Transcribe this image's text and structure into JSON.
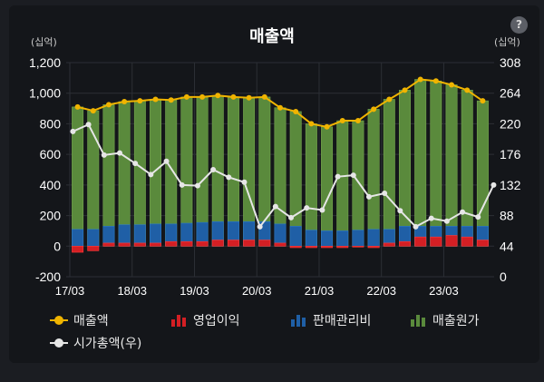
{
  "title": "매출액",
  "help_label": "?",
  "left_unit": "(십억)",
  "right_unit": "(십억)",
  "colors": {
    "revenue": "#f0b400",
    "operating_profit": "#d41f24",
    "sga": "#1f5fa6",
    "cogs": "#5a8a3c",
    "market_cap": "#e6e6e6",
    "grid": "#2c2f35",
    "axis_text": "#ffffff"
  },
  "legend": [
    {
      "label": "매출액",
      "icon": "line-marker-icon",
      "key": "revenue"
    },
    {
      "label": "영업이익",
      "icon": "bar-icon",
      "key": "operating_profit"
    },
    {
      "label": "판매관리비",
      "icon": "bar-icon",
      "key": "sga"
    },
    {
      "label": "매출원가",
      "icon": "bar-icon",
      "key": "cogs"
    },
    {
      "label": "시가총액(우)",
      "icon": "line-marker-icon",
      "key": "market_cap"
    }
  ],
  "chart_data": {
    "type": "bar",
    "title": "매출액",
    "xlabel": "",
    "ylabel": "(십억)",
    "y2label": "(십억)",
    "ylim": [
      -200,
      1200
    ],
    "y_ticks": [
      -200,
      0,
      200,
      400,
      600,
      800,
      1000,
      1200
    ],
    "y_tick_labels": [
      "-200",
      "0",
      "200",
      "400",
      "600",
      "800",
      "1,000",
      "1,200"
    ],
    "y2lim": [
      0,
      308
    ],
    "y2_ticks": [
      0,
      44,
      88,
      132,
      176,
      220,
      264,
      308
    ],
    "x_tick_labels": [
      {
        "index": 0,
        "label": "17/03"
      },
      {
        "index": 4,
        "label": "18/03"
      },
      {
        "index": 8,
        "label": "19/03"
      },
      {
        "index": 12,
        "label": "20/03"
      },
      {
        "index": 16,
        "label": "21/03"
      },
      {
        "index": 20,
        "label": "22/03"
      },
      {
        "index": 24,
        "label": "23/03"
      }
    ],
    "grid": true,
    "legend_position": "bottom",
    "series": [
      {
        "name": "매출액",
        "type": "line",
        "axis": "left",
        "values": [
          910,
          885,
          925,
          945,
          950,
          960,
          955,
          975,
          975,
          985,
          975,
          970,
          975,
          905,
          880,
          800,
          780,
          820,
          820,
          895,
          960,
          1020,
          1090,
          1080,
          1055,
          1020,
          950
        ]
      },
      {
        "name": "영업이익",
        "type": "bar",
        "axis": "left",
        "values": [
          -40,
          -30,
          20,
          20,
          20,
          20,
          30,
          30,
          30,
          40,
          40,
          40,
          40,
          20,
          -10,
          -10,
          -10,
          -10,
          -5,
          -10,
          20,
          30,
          60,
          60,
          70,
          60,
          40
        ]
      },
      {
        "name": "판매관리비",
        "type": "bar",
        "axis": "left",
        "values": [
          110,
          110,
          130,
          140,
          140,
          145,
          145,
          150,
          155,
          160,
          160,
          160,
          160,
          145,
          130,
          105,
          100,
          100,
          105,
          110,
          110,
          130,
          130,
          130,
          130,
          130,
          130
        ]
      },
      {
        "name": "매출원가",
        "type": "bar",
        "axis": "left",
        "values": [
          910,
          885,
          925,
          945,
          950,
          960,
          955,
          975,
          975,
          985,
          975,
          970,
          975,
          905,
          880,
          800,
          780,
          820,
          820,
          895,
          960,
          1020,
          1090,
          1080,
          1055,
          1020,
          950
        ]
      },
      {
        "name": "시가총액(우)",
        "type": "line",
        "axis": "right",
        "values": [
          209,
          219,
          175,
          178,
          163,
          147,
          166,
          132,
          131,
          154,
          143,
          136,
          72,
          101,
          85,
          99,
          96,
          144,
          146,
          115,
          120,
          95,
          72,
          84,
          80,
          93,
          86,
          132
        ]
      }
    ]
  }
}
